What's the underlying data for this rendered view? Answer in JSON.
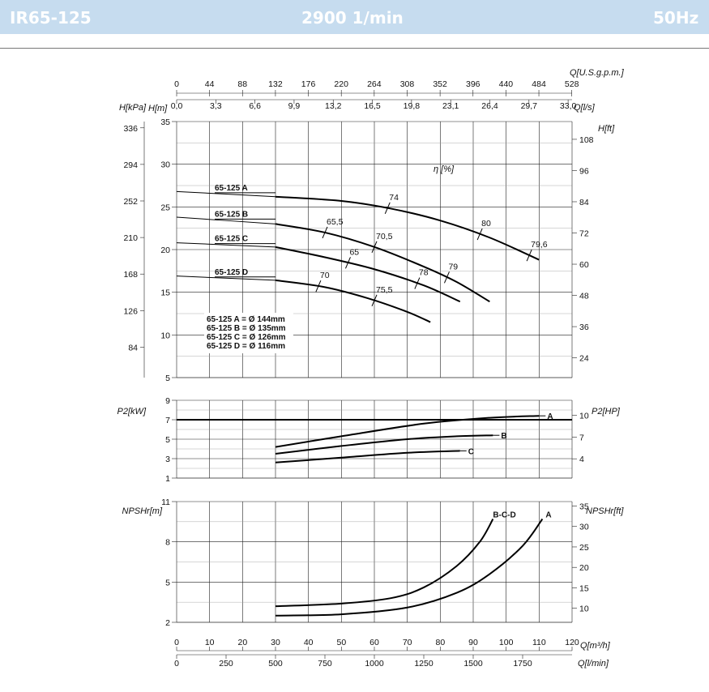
{
  "header": {
    "model": "IR65-125",
    "speed": "2900 1/min",
    "frequency": "50Hz",
    "bg_color": "#c6dcef"
  },
  "chart_data": [
    {
      "id": "head",
      "type": "line",
      "title": "",
      "xlabel": "Q[m³/h]",
      "ylabel_left_outer": "H[kPa]",
      "ylabel_left": "H[m]",
      "ylabel_right": "H[ft]",
      "top_axis_1_label": "Q[U.S.g.p.m.]",
      "top_axis_2_label": "Q[l/s]",
      "xlim": [
        0,
        120
      ],
      "ylim": [
        5,
        35
      ],
      "x_ticks": [
        0,
        10,
        20,
        30,
        40,
        50,
        60,
        70,
        80,
        90,
        100,
        110,
        120
      ],
      "y_ticks_m": [
        "5",
        "10",
        "15",
        "20",
        "25",
        "30",
        "35"
      ],
      "y_ticks_kpa": [
        "84",
        "126",
        "168",
        "210",
        "252",
        "294",
        "336"
      ],
      "y_ticks_ft": [
        "24",
        "36",
        "48",
        "60",
        "72",
        "84",
        "96",
        "108"
      ],
      "top_ticks_usgpm": [
        "0",
        "44",
        "88",
        "132",
        "176",
        "220",
        "264",
        "308",
        "352",
        "396",
        "440",
        "484",
        "528"
      ],
      "top_ticks_ls": [
        "0,0",
        "3,3",
        "6,6",
        "9,9",
        "13,2",
        "16,5",
        "19,8",
        "23,1",
        "26,4",
        "29,7",
        "33,0"
      ],
      "efficiency_label": "η [%]",
      "series": [
        {
          "name": "65-125 A",
          "x": [
            0,
            30,
            50,
            65,
            80,
            95,
            110
          ],
          "y": [
            26.8,
            26.2,
            25.7,
            24.8,
            23.4,
            21.4,
            18.8
          ]
        },
        {
          "name": "65-125 B",
          "x": [
            0,
            30,
            45,
            60,
            75,
            85,
            95
          ],
          "y": [
            23.8,
            23.0,
            22.0,
            20.3,
            18.0,
            16.2,
            13.9
          ]
        },
        {
          "name": "65-125 C",
          "x": [
            0,
            30,
            45,
            60,
            75,
            86
          ],
          "y": [
            20.8,
            20.3,
            19.1,
            17.7,
            15.8,
            13.9
          ]
        },
        {
          "name": "65-125 D",
          "x": [
            0,
            30,
            45,
            58,
            70,
            77
          ],
          "y": [
            16.9,
            16.4,
            15.6,
            14.3,
            12.7,
            11.5
          ]
        }
      ],
      "efficiency_marks": [
        {
          "label": "74",
          "series": "65-125 A",
          "x": 64
        },
        {
          "label": "80",
          "series": "65-125 A",
          "x": 92
        },
        {
          "label": "79,6",
          "series": "65-125 A",
          "x": 107
        },
        {
          "label": "65,5",
          "series": "65-125 B",
          "x": 45
        },
        {
          "label": "70,5",
          "series": "65-125 B",
          "x": 60
        },
        {
          "label": "79",
          "series": "65-125 B",
          "x": 82
        },
        {
          "label": "65",
          "series": "65-125 C",
          "x": 52
        },
        {
          "label": "78",
          "series": "65-125 C",
          "x": 73
        },
        {
          "label": "70",
          "series": "65-125 D",
          "x": 43
        },
        {
          "label": "75,5",
          "series": "65-125 D",
          "x": 60
        }
      ],
      "legend": [
        "65-125 A = Ø 144mm",
        "65-125 B = Ø 135mm",
        "65-125 C = Ø 126mm",
        "65-125 D = Ø 116mm"
      ]
    },
    {
      "id": "power",
      "type": "line",
      "ylabel_left": "P2[kW]",
      "ylabel_right": "P2[HP]",
      "xlim": [
        0,
        120
      ],
      "ylim": [
        1,
        9
      ],
      "y_ticks": [
        "1",
        "3",
        "5",
        "7",
        "9"
      ],
      "y_ticks_hp": [
        "4",
        "7",
        "10"
      ],
      "reference_line": 7,
      "series": [
        {
          "name": "A",
          "x": [
            30,
            50,
            75,
            95,
            110
          ],
          "y": [
            4.2,
            5.3,
            6.6,
            7.2,
            7.4
          ]
        },
        {
          "name": "B",
          "x": [
            30,
            50,
            70,
            85,
            96
          ],
          "y": [
            3.5,
            4.3,
            5.0,
            5.3,
            5.4
          ]
        },
        {
          "name": "C",
          "x": [
            30,
            50,
            70,
            86
          ],
          "y": [
            2.6,
            3.1,
            3.6,
            3.8
          ]
        }
      ]
    },
    {
      "id": "npsh",
      "type": "line",
      "ylabel_left": "NPSHr[m]",
      "ylabel_right": "NPSHr[ft]",
      "xlim": [
        0,
        120
      ],
      "ylim": [
        2,
        11
      ],
      "y_ticks": [
        "2",
        "5",
        "8",
        "11"
      ],
      "y_ticks_ft": [
        "10",
        "15",
        "20",
        "25",
        "30",
        "35"
      ],
      "series": [
        {
          "name": "B-C-D",
          "x": [
            30,
            50,
            65,
            75,
            85,
            92,
            96
          ],
          "y": [
            3.2,
            3.4,
            3.8,
            4.6,
            6.2,
            8.0,
            9.7
          ]
        },
        {
          "name": "A",
          "x": [
            30,
            50,
            70,
            85,
            95,
            105,
            111
          ],
          "y": [
            2.5,
            2.6,
            3.1,
            4.2,
            5.6,
            7.7,
            9.7
          ]
        }
      ],
      "bottom_ticks_m3h": [
        "0",
        "10",
        "20",
        "30",
        "40",
        "50",
        "60",
        "70",
        "80",
        "90",
        "100",
        "110",
        "120"
      ],
      "bottom_ticks_lmin": [
        "0",
        "250",
        "500",
        "750",
        "1000",
        "1250",
        "1500",
        "1750"
      ],
      "bottom_label_m3h": "Q[m³/h]",
      "bottom_label_lmin": "Q[l/min]"
    }
  ]
}
